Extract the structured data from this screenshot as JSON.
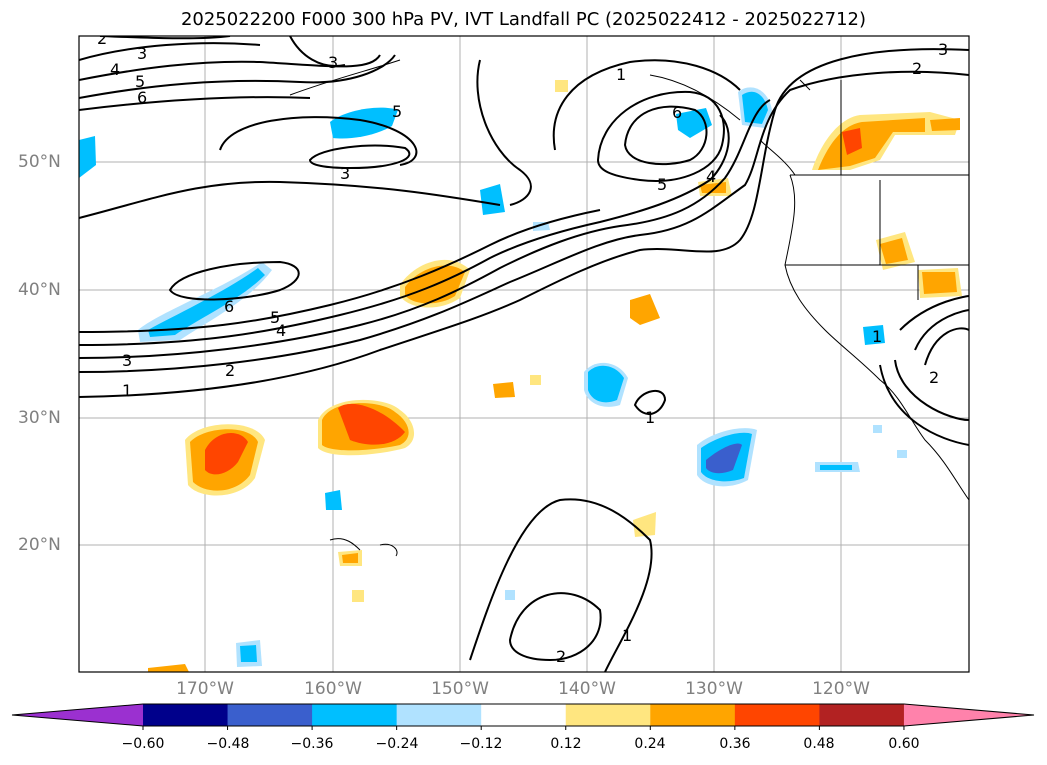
{
  "title": "2025022200 F000 300 hPa PV, IVT Landfall PC (2025022412 - 2025022712)",
  "lat_labels": [
    "50°N",
    "40°N",
    "30°N",
    "20°N"
  ],
  "lon_labels": [
    "170°W",
    "160°W",
    "150°W",
    "140°W",
    "130°W",
    "120°W"
  ],
  "colorbar": {
    "ticks": [
      "−0.60",
      "−0.48",
      "−0.36",
      "−0.24",
      "−0.12",
      "0.12",
      "0.24",
      "0.36",
      "0.48",
      "0.60"
    ],
    "colors": [
      "#9b30d0",
      "#00008b",
      "#3a5fcd",
      "#00bfff",
      "#b0e2ff",
      "#ffffff",
      "#ffe680",
      "#ffa500",
      "#ff4500",
      "#b22222",
      "#ff82ab"
    ]
  },
  "contour_labels": [
    "2",
    "3",
    "4",
    "5",
    "6",
    "3",
    "5",
    "3",
    "1",
    "6",
    "5",
    "4",
    "3",
    "2",
    "1",
    "5",
    "4",
    "6",
    "2",
    "3",
    "1",
    "2",
    "2",
    "1",
    "1"
  ],
  "colors": {
    "line": "#000000",
    "grid": "#b0b0b0",
    "coast": "#000000"
  }
}
